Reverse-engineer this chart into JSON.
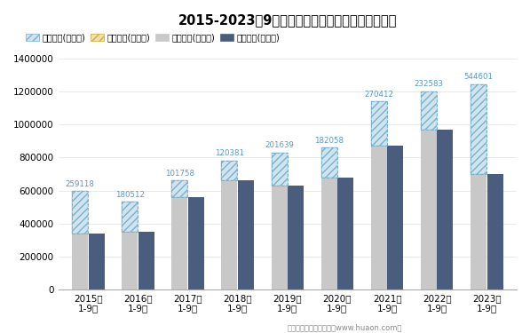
{
  "title": "2015-2023年9月安徽省外商投资企业进出口差额图",
  "categories": [
    "2015年\n1-9月",
    "2016年\n1-9月",
    "2017年\n1-9月",
    "2018年\n1-9月",
    "2019年\n1-9月",
    "2020年\n1-9月",
    "2021年\n1-9月",
    "2022年\n1-9月",
    "2023年\n1-9月"
  ],
  "export_values": [
    597118,
    530512,
    661758,
    781381,
    831639,
    862058,
    1140412,
    1202583,
    1244601
  ],
  "import_values": [
    338000,
    350000,
    560000,
    661000,
    630000,
    680000,
    870000,
    970000,
    700000
  ],
  "balance_values": [
    259118,
    180512,
    101758,
    120381,
    201639,
    182058,
    270412,
    232583,
    544601
  ],
  "export_color": "#c8c8c8",
  "import_color": "#4a5d7e",
  "hatch_facecolor": "#d0e4f0",
  "hatch_edgecolor": "#7ab0cc",
  "label_color_balance": "#5599cc",
  "ylabel_max": 1400000,
  "ytick_step": 200000,
  "footer": "制图：华经产业研究院（www.huaon.com）",
  "legend_items": [
    "贸易顺差(万美元)",
    "贸易逆差(万美元)",
    "出口总额(万美元)",
    "进口总额(万美元)"
  ],
  "legend_facecolors": [
    "#d0e4f0",
    "#f5e0a0",
    "#c8c8c8",
    "#4a5d7e"
  ],
  "legend_edgecolors": [
    "#7ab0cc",
    "#ccaa44",
    "none",
    "none"
  ],
  "legend_hatches": [
    "////",
    "////",
    "",
    ""
  ]
}
